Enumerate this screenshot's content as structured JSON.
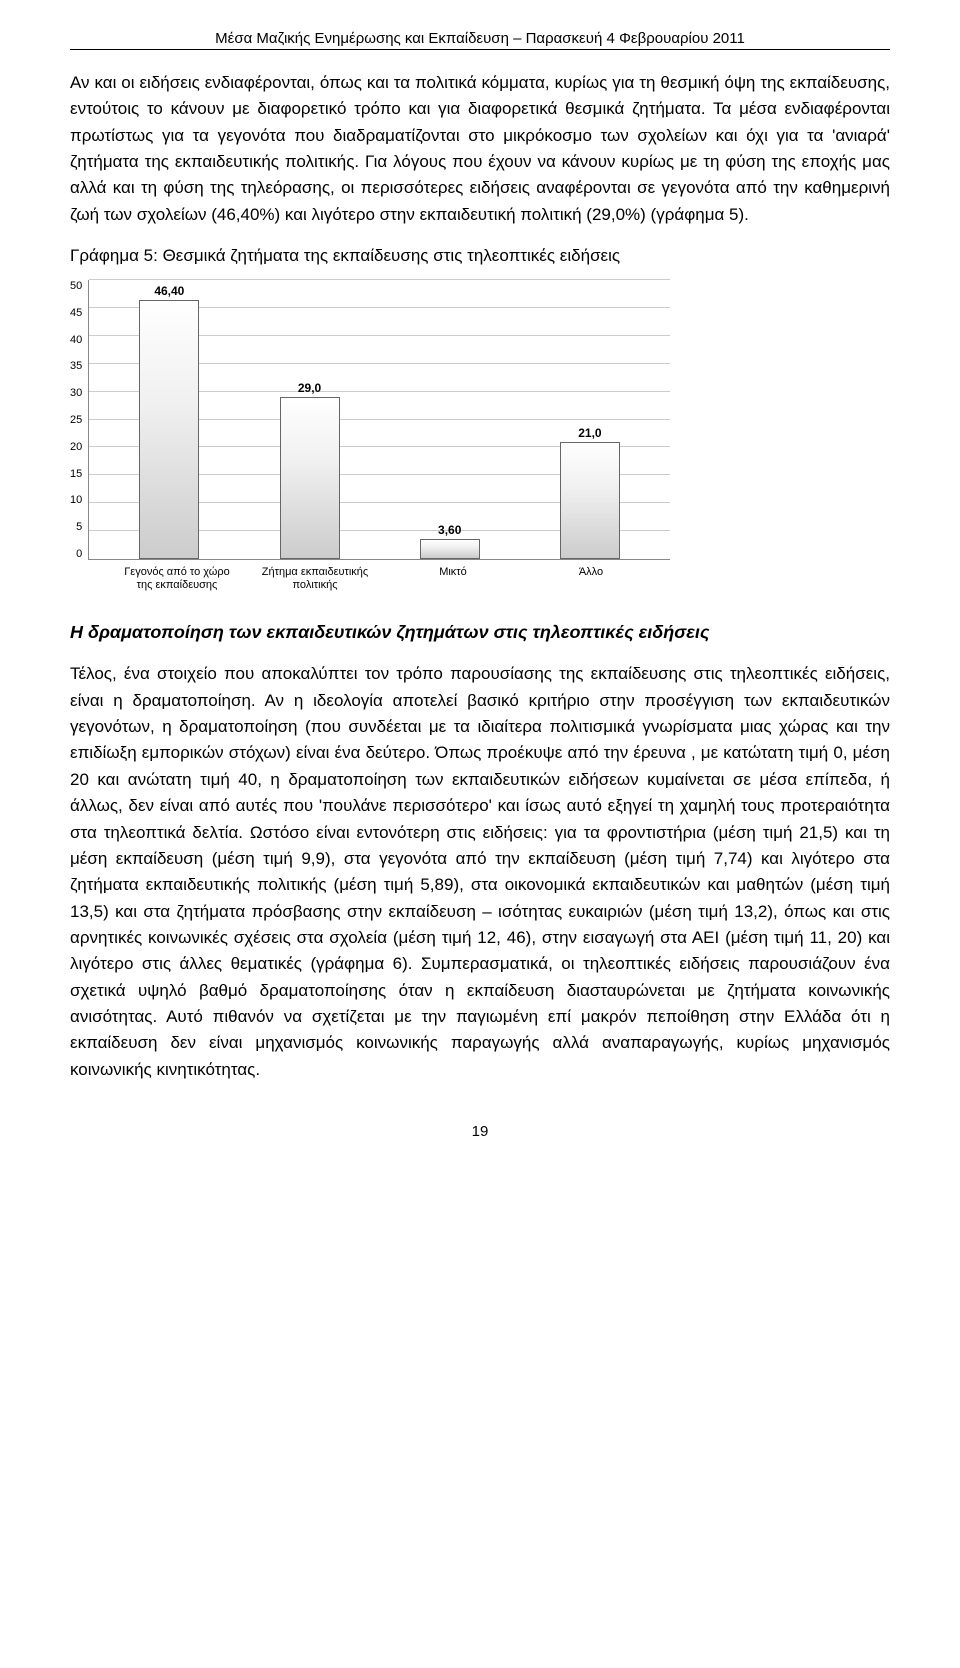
{
  "header": "Μέσα Μαζικής Ενημέρωσης και Εκπαίδευση – Παρασκευή 4 Φεβρουαρίου 2011",
  "paragraph1": "Αν και οι ειδήσεις ενδιαφέρονται, όπως και τα πολιτικά κόμματα, κυρίως για τη θεσμική όψη της εκπαίδευσης, εντούτοις το κάνουν με διαφορετικό τρόπο και για διαφορετικά θεσμικά ζητήματα. Τα μέσα ενδιαφέρονται πρωτίστως για τα γεγονότα που διαδραματίζονται στο μικρόκοσμο των σχολείων και όχι για τα 'ανιαρά' ζητήματα της εκπαιδευτικής πολιτικής. Για λόγους που έχουν να κάνουν κυρίως με τη φύση της εποχής μας αλλά και τη φύση της τηλεόρασης, οι περισσότερες ειδήσεις αναφέρονται σε γεγονότα από την καθημερινή ζωή των σχολείων (46,40%) και λιγότερο στην εκπαιδευτική πολιτική (29,0%) (γράφημα 5).",
  "chart": {
    "title": "Γράφημα 5: Θεσμικά ζητήματα της εκπαίδευσης στις τηλεοπτικές ειδήσεις",
    "type": "bar",
    "ylim": [
      0,
      50
    ],
    "ytick_step": 5,
    "yticks": [
      "50",
      "45",
      "40",
      "35",
      "30",
      "25",
      "20",
      "15",
      "10",
      "5",
      "0"
    ],
    "categories": [
      "Γεγονός από το χώρο της εκπαίδευσης",
      "Ζήτημα εκπαιδευτικής πολιτικής",
      "Μικτό",
      "Άλλο"
    ],
    "values": [
      46.4,
      29.0,
      3.6,
      21.0
    ],
    "value_labels": [
      "46,40",
      "29,0",
      "3,60",
      "21,0"
    ],
    "bar_fill_top": "#ffffff",
    "bar_fill_bottom": "#cccccc",
    "bar_border": "#666666",
    "grid_color": "#cccccc",
    "background_color": "#ffffff",
    "label_fontsize": 11
  },
  "section_heading": "Η δραματοποίηση των εκπαιδευτικών ζητημάτων στις τηλεοπτικές ειδήσεις",
  "paragraph2": "Τέλος, ένα στοιχείο που αποκαλύπτει τον τρόπο παρουσίασης της εκπαίδευσης στις τηλεοπτικές ειδήσεις, είναι η δραματοποίηση. Αν η ιδεολογία αποτελεί βασικό κριτήριο στην προσέγγιση των εκπαιδευτικών γεγονότων, η δραματοποίηση (που συνδέεται με τα ιδιαίτερα πολιτισμικά γνωρίσματα μιας χώρας και την επιδίωξη εμπορικών στόχων) είναι ένα δεύτερο. Όπως προέκυψε από την έρευνα , με κατώτατη τιμή 0, μέση 20 και ανώτατη τιμή 40, η δραματοποίηση των εκπαιδευτικών ειδήσεων κυμαίνεται σε μέσα επίπεδα, ή άλλως, δεν είναι από αυτές που 'πουλάνε περισσότερο' και ίσως αυτό εξηγεί τη χαμηλή τους προτεραιότητα στα τηλεοπτικά δελτία. Ωστόσο είναι εντονότερη στις ειδήσεις: για τα φροντιστήρια (μέση τιμή 21,5) και τη μέση εκπαίδευση (μέση τιμή 9,9), στα γεγονότα από την εκπαίδευση (μέση τιμή 7,74) και λιγότερο στα ζητήματα εκπαιδευτικής πολιτικής (μέση τιμή 5,89), στα οικονομικά εκπαιδευτικών και μαθητών (μέση τιμή 13,5) και στα ζητήματα πρόσβασης στην εκπαίδευση – ισότητας ευκαιριών (μέση τιμή 13,2), όπως και στις αρνητικές κοινωνικές σχέσεις στα σχολεία (μέση τιμή 12, 46), στην εισαγωγή στα ΑΕΙ (μέση τιμή 11, 20) και λιγότερο στις άλλες θεματικές (γράφημα 6). Συμπερασματικά, οι τηλεοπτικές ειδήσεις παρουσιάζουν ένα σχετικά υψηλό βαθμό δραματοποίησης όταν η εκπαίδευση διασταυρώνεται με ζητήματα κοινωνικής ανισότητας. Αυτό πιθανόν να σχετίζεται με την παγιωμένη επί μακρόν πεποίθηση στην Ελλάδα ότι η εκπαίδευση δεν είναι μηχανισμός κοινωνικής παραγωγής αλλά αναπαραγωγής, κυρίως μηχανισμός κοινωνικής κινητικότητας.",
  "page_number": "19"
}
